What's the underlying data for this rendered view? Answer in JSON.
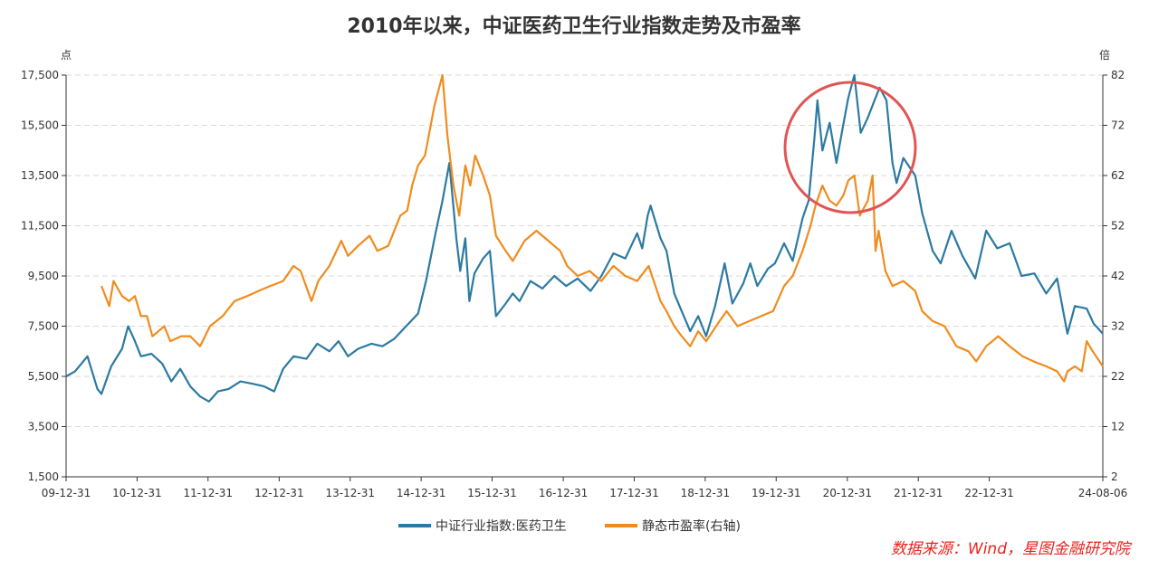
{
  "chart_data": {
    "type": "line",
    "title": "2010年以来，中证医药卫生行业指数走势及市盈率",
    "left_unit": "点",
    "right_unit": "倍",
    "x_tick_labels": [
      "09-12-31",
      "10-12-31",
      "11-12-31",
      "12-12-31",
      "13-12-31",
      "14-12-31",
      "15-12-31",
      "16-12-31",
      "17-12-31",
      "18-12-31",
      "19-12-31",
      "20-12-31",
      "21-12-31",
      "22-12-31",
      "24-08-06"
    ],
    "x_tick_dates": [
      "2009-12-31",
      "2010-12-31",
      "2011-12-31",
      "2012-12-31",
      "2013-12-31",
      "2014-12-31",
      "2015-12-31",
      "2016-12-31",
      "2017-12-31",
      "2018-12-31",
      "2019-12-31",
      "2020-12-31",
      "2021-12-31",
      "2022-12-31",
      "2024-08-06"
    ],
    "x_range": [
      "2009-12-31",
      "2024-08-06"
    ],
    "y_left": {
      "ticks": [
        "1,500",
        "3,500",
        "5,500",
        "7,500",
        "9,500",
        "11,500",
        "13,500",
        "15,500",
        "17,500"
      ],
      "range": [
        1500,
        17500
      ]
    },
    "y_right": {
      "ticks": [
        "2",
        "12",
        "22",
        "32",
        "42",
        "52",
        "62",
        "72",
        "82"
      ],
      "range": [
        2,
        82
      ]
    },
    "grid": true,
    "legend_position": "bottom",
    "series": [
      {
        "name": "中证行业指数:医药卫生",
        "axis": "left",
        "color": "#2c7aa1",
        "points": [
          [
            "2009-12-31",
            5500
          ],
          [
            "2010-02-15",
            5700
          ],
          [
            "2010-04-20",
            6300
          ],
          [
            "2010-06-10",
            5000
          ],
          [
            "2010-07-01",
            4800
          ],
          [
            "2010-08-20",
            5900
          ],
          [
            "2010-10-15",
            6600
          ],
          [
            "2010-11-15",
            7500
          ],
          [
            "2010-12-15",
            7000
          ],
          [
            "2011-01-20",
            6300
          ],
          [
            "2011-03-15",
            6400
          ],
          [
            "2011-05-10",
            6000
          ],
          [
            "2011-06-25",
            5300
          ],
          [
            "2011-08-10",
            5800
          ],
          [
            "2011-10-01",
            5100
          ],
          [
            "2011-11-20",
            4700
          ],
          [
            "2012-01-05",
            4500
          ],
          [
            "2012-02-20",
            4900
          ],
          [
            "2012-04-15",
            5000
          ],
          [
            "2012-06-15",
            5300
          ],
          [
            "2012-08-20",
            5200
          ],
          [
            "2012-10-15",
            5100
          ],
          [
            "2012-12-05",
            4900
          ],
          [
            "2013-01-20",
            5800
          ],
          [
            "2013-03-15",
            6300
          ],
          [
            "2013-05-20",
            6200
          ],
          [
            "2013-07-15",
            6800
          ],
          [
            "2013-09-15",
            6500
          ],
          [
            "2013-11-01",
            6900
          ],
          [
            "2013-12-20",
            6300
          ],
          [
            "2014-02-10",
            6600
          ],
          [
            "2014-04-20",
            6800
          ],
          [
            "2014-06-15",
            6700
          ],
          [
            "2014-08-15",
            7000
          ],
          [
            "2014-10-15",
            7500
          ],
          [
            "2014-12-15",
            8000
          ],
          [
            "2015-01-25",
            9300
          ],
          [
            "2015-03-15",
            11200
          ],
          [
            "2015-04-20",
            12500
          ],
          [
            "2015-05-25",
            14000
          ],
          [
            "2015-06-30",
            11000
          ],
          [
            "2015-07-20",
            9700
          ],
          [
            "2015-08-15",
            11000
          ],
          [
            "2015-09-05",
            8500
          ],
          [
            "2015-10-01",
            9600
          ],
          [
            "2015-11-15",
            10200
          ],
          [
            "2015-12-20",
            10500
          ],
          [
            "2016-01-20",
            7900
          ],
          [
            "2016-03-10",
            8400
          ],
          [
            "2016-04-15",
            8800
          ],
          [
            "2016-05-20",
            8500
          ],
          [
            "2016-07-15",
            9300
          ],
          [
            "2016-09-15",
            9000
          ],
          [
            "2016-11-15",
            9500
          ],
          [
            "2017-01-15",
            9100
          ],
          [
            "2017-03-15",
            9400
          ],
          [
            "2017-05-20",
            8900
          ],
          [
            "2017-07-15",
            9500
          ],
          [
            "2017-09-15",
            10400
          ],
          [
            "2017-11-15",
            10200
          ],
          [
            "2018-01-15",
            11200
          ],
          [
            "2018-02-10",
            10600
          ],
          [
            "2018-03-10",
            11900
          ],
          [
            "2018-03-25",
            12300
          ],
          [
            "2018-05-15",
            11000
          ],
          [
            "2018-06-15",
            10500
          ],
          [
            "2018-07-25",
            8800
          ],
          [
            "2018-09-01",
            8100
          ],
          [
            "2018-10-15",
            7300
          ],
          [
            "2018-11-25",
            7900
          ],
          [
            "2019-01-05",
            7100
          ],
          [
            "2019-02-20",
            8300
          ],
          [
            "2019-04-10",
            10000
          ],
          [
            "2019-05-20",
            8400
          ],
          [
            "2019-07-15",
            9200
          ],
          [
            "2019-08-20",
            10000
          ],
          [
            "2019-09-25",
            9100
          ],
          [
            "2019-11-20",
            9800
          ],
          [
            "2019-12-25",
            10000
          ],
          [
            "2020-02-10",
            10800
          ],
          [
            "2020-03-25",
            10100
          ],
          [
            "2020-05-15",
            11800
          ],
          [
            "2020-06-15",
            12500
          ],
          [
            "2020-07-15",
            15000
          ],
          [
            "2020-07-30",
            16500
          ],
          [
            "2020-08-25",
            14500
          ],
          [
            "2020-10-01",
            15600
          ],
          [
            "2020-11-05",
            14000
          ],
          [
            "2020-12-05",
            15300
          ],
          [
            "2021-01-05",
            16600
          ],
          [
            "2021-02-05",
            17500
          ],
          [
            "2021-03-10",
            15200
          ],
          [
            "2021-04-15",
            15800
          ],
          [
            "2021-05-20",
            16500
          ],
          [
            "2021-06-15",
            17000
          ],
          [
            "2021-07-20",
            16500
          ],
          [
            "2021-08-20",
            14000
          ],
          [
            "2021-09-10",
            13200
          ],
          [
            "2021-10-15",
            14200
          ],
          [
            "2021-12-15",
            13500
          ],
          [
            "2022-01-20",
            12000
          ],
          [
            "2022-03-15",
            10500
          ],
          [
            "2022-04-25",
            10000
          ],
          [
            "2022-06-20",
            11300
          ],
          [
            "2022-08-15",
            10300
          ],
          [
            "2022-10-20",
            9400
          ],
          [
            "2022-12-15",
            11300
          ],
          [
            "2023-02-10",
            10600
          ],
          [
            "2023-04-15",
            10800
          ],
          [
            "2023-06-15",
            9500
          ],
          [
            "2023-08-20",
            9600
          ],
          [
            "2023-10-20",
            8800
          ],
          [
            "2023-12-15",
            9400
          ],
          [
            "2024-02-06",
            7200
          ],
          [
            "2024-03-15",
            8300
          ],
          [
            "2024-05-15",
            8200
          ],
          [
            "2024-06-20",
            7600
          ],
          [
            "2024-08-06",
            7200
          ]
        ]
      },
      {
        "name": "静态市盈率(右轴)",
        "axis": "right",
        "color": "#f08c1e",
        "points": [
          [
            "2010-07-01",
            40
          ],
          [
            "2010-08-10",
            36
          ],
          [
            "2010-09-01",
            41
          ],
          [
            "2010-10-15",
            38
          ],
          [
            "2010-11-20",
            37
          ],
          [
            "2010-12-20",
            38
          ],
          [
            "2011-01-20",
            34
          ],
          [
            "2011-02-20",
            34
          ],
          [
            "2011-03-20",
            30
          ],
          [
            "2011-04-20",
            31
          ],
          [
            "2011-05-20",
            32
          ],
          [
            "2011-06-20",
            29
          ],
          [
            "2011-08-15",
            30
          ],
          [
            "2011-10-01",
            30
          ],
          [
            "2011-11-20",
            28
          ],
          [
            "2012-01-10",
            32
          ],
          [
            "2012-03-15",
            34
          ],
          [
            "2012-05-15",
            37
          ],
          [
            "2012-07-20",
            38
          ],
          [
            "2012-09-15",
            39
          ],
          [
            "2012-11-15",
            40
          ],
          [
            "2013-01-20",
            41
          ],
          [
            "2013-03-15",
            44
          ],
          [
            "2013-04-20",
            43
          ],
          [
            "2013-06-15",
            37
          ],
          [
            "2013-07-20",
            41
          ],
          [
            "2013-09-15",
            44
          ],
          [
            "2013-11-15",
            49
          ],
          [
            "2013-12-20",
            46
          ],
          [
            "2014-02-10",
            48
          ],
          [
            "2014-04-10",
            50
          ],
          [
            "2014-05-20",
            47
          ],
          [
            "2014-07-15",
            48
          ],
          [
            "2014-09-15",
            54
          ],
          [
            "2014-10-20",
            55
          ],
          [
            "2014-11-15",
            60
          ],
          [
            "2014-12-15",
            64
          ],
          [
            "2015-01-20",
            66
          ],
          [
            "2015-03-10",
            76
          ],
          [
            "2015-04-20",
            82
          ],
          [
            "2015-05-15",
            70
          ],
          [
            "2015-06-15",
            60
          ],
          [
            "2015-07-15",
            54
          ],
          [
            "2015-08-15",
            64
          ],
          [
            "2015-09-10",
            60
          ],
          [
            "2015-10-05",
            66
          ],
          [
            "2015-11-15",
            62
          ],
          [
            "2015-12-20",
            58
          ],
          [
            "2016-01-20",
            50
          ],
          [
            "2016-03-10",
            47
          ],
          [
            "2016-04-15",
            45
          ],
          [
            "2016-06-15",
            49
          ],
          [
            "2016-08-15",
            51
          ],
          [
            "2016-10-15",
            49
          ],
          [
            "2016-12-15",
            47
          ],
          [
            "2017-01-20",
            44
          ],
          [
            "2017-03-15",
            42
          ],
          [
            "2017-05-15",
            43
          ],
          [
            "2017-07-15",
            41
          ],
          [
            "2017-09-15",
            44
          ],
          [
            "2017-11-15",
            42
          ],
          [
            "2018-01-15",
            41
          ],
          [
            "2018-03-15",
            44
          ],
          [
            "2018-05-15",
            37
          ],
          [
            "2018-06-15",
            35
          ],
          [
            "2018-07-25",
            32
          ],
          [
            "2018-09-01",
            30
          ],
          [
            "2018-10-15",
            28
          ],
          [
            "2018-11-25",
            31
          ],
          [
            "2019-01-05",
            29
          ],
          [
            "2019-03-15",
            33
          ],
          [
            "2019-04-20",
            35
          ],
          [
            "2019-06-15",
            32
          ],
          [
            "2019-08-15",
            33
          ],
          [
            "2019-10-15",
            34
          ],
          [
            "2019-12-15",
            35
          ],
          [
            "2020-02-10",
            40
          ],
          [
            "2020-03-25",
            42
          ],
          [
            "2020-05-15",
            47
          ],
          [
            "2020-06-25",
            52
          ],
          [
            "2020-07-20",
            56
          ],
          [
            "2020-08-25",
            60
          ],
          [
            "2020-10-01",
            57
          ],
          [
            "2020-11-05",
            56
          ],
          [
            "2020-12-10",
            58
          ],
          [
            "2021-01-05",
            61
          ],
          [
            "2021-02-05",
            62
          ],
          [
            "2021-03-05",
            54
          ],
          [
            "2021-04-15",
            57
          ],
          [
            "2021-05-10",
            62
          ],
          [
            "2021-05-25",
            47
          ],
          [
            "2021-06-10",
            51
          ],
          [
            "2021-07-15",
            43
          ],
          [
            "2021-08-20",
            40
          ],
          [
            "2021-10-15",
            41
          ],
          [
            "2021-11-15",
            40
          ],
          [
            "2021-12-15",
            39
          ],
          [
            "2022-01-20",
            35
          ],
          [
            "2022-03-15",
            33
          ],
          [
            "2022-05-15",
            32
          ],
          [
            "2022-07-15",
            28
          ],
          [
            "2022-09-15",
            27
          ],
          [
            "2022-10-25",
            25
          ],
          [
            "2022-12-15",
            28
          ],
          [
            "2023-02-15",
            30
          ],
          [
            "2023-04-15",
            28
          ],
          [
            "2023-06-20",
            26
          ],
          [
            "2023-08-15",
            25
          ],
          [
            "2023-10-20",
            24
          ],
          [
            "2023-12-15",
            23
          ],
          [
            "2024-01-20",
            21
          ],
          [
            "2024-02-06",
            23
          ],
          [
            "2024-03-15",
            24
          ],
          [
            "2024-04-20",
            23
          ],
          [
            "2024-05-15",
            29
          ],
          [
            "2024-06-15",
            27
          ],
          [
            "2024-08-06",
            24
          ]
        ]
      }
    ]
  },
  "source_note": "数据来源：Wind，星图金融研究院"
}
